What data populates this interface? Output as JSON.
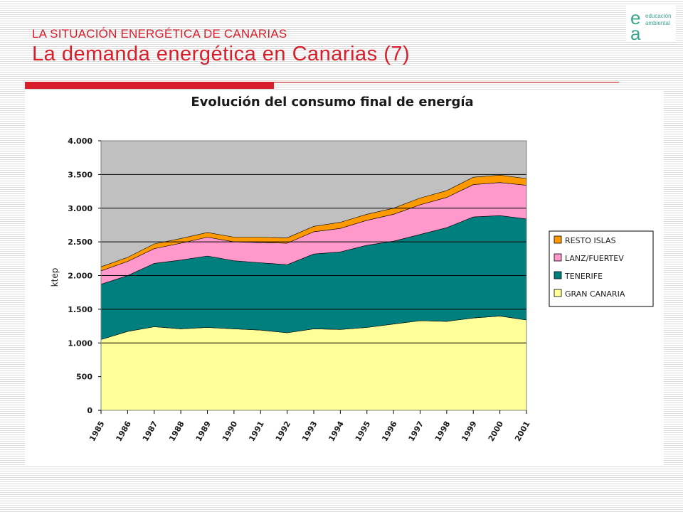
{
  "header": {
    "section": "LA SITUACIÓN ENERGÉTICA DE CANARIAS",
    "title": "La demanda energética en Canarias (7)"
  },
  "logo": {
    "letter_top": "e",
    "letter_bottom": "a",
    "line1": "educación",
    "line2": "ambiental"
  },
  "colors": {
    "accent": "#d81e2a",
    "logo": "#3aa58e"
  },
  "chart_data": {
    "type": "area",
    "stacked": true,
    "title": "Evolución del consumo final de energía",
    "xlabel": "",
    "ylabel": "ktep",
    "ylim": [
      0,
      4000
    ],
    "yticks": [
      0,
      500,
      1000,
      1500,
      2000,
      2500,
      3000,
      3500,
      4000
    ],
    "ytick_labels": [
      "0",
      "500",
      "1.000",
      "1.500",
      "2.000",
      "2.500",
      "3.000",
      "3.500",
      "4.000"
    ],
    "gridlines": [
      1000,
      1500,
      2000,
      2500,
      3000,
      3500
    ],
    "categories": [
      "1985",
      "1986",
      "1987",
      "1988",
      "1989",
      "1990",
      "1991",
      "1992",
      "1993",
      "1994",
      "1995",
      "1996",
      "1997",
      "1998",
      "1999",
      "2000",
      "2001"
    ],
    "legend_position": "right",
    "series": [
      {
        "name": "GRAN CANARIA",
        "color": "#ffff99",
        "values": [
          1050,
          1170,
          1240,
          1210,
          1230,
          1210,
          1190,
          1150,
          1210,
          1200,
          1230,
          1280,
          1330,
          1320,
          1370,
          1400,
          1340
        ]
      },
      {
        "name": "TENERIFE",
        "color": "#007f7f",
        "values": [
          820,
          830,
          940,
          1020,
          1060,
          1010,
          1000,
          1010,
          1110,
          1150,
          1220,
          1230,
          1280,
          1390,
          1500,
          1490,
          1500
        ]
      },
      {
        "name": "LANZ/FUERTEV",
        "color": "#ff99cc",
        "values": [
          200,
          210,
          220,
          250,
          280,
          280,
          300,
          320,
          330,
          350,
          370,
          400,
          440,
          450,
          480,
          490,
          500
        ]
      },
      {
        "name": "RESTO ISLAS",
        "color": "#ff9900",
        "values": [
          60,
          60,
          70,
          70,
          70,
          70,
          80,
          80,
          80,
          90,
          90,
          90,
          100,
          100,
          110,
          110,
          100
        ]
      }
    ]
  }
}
